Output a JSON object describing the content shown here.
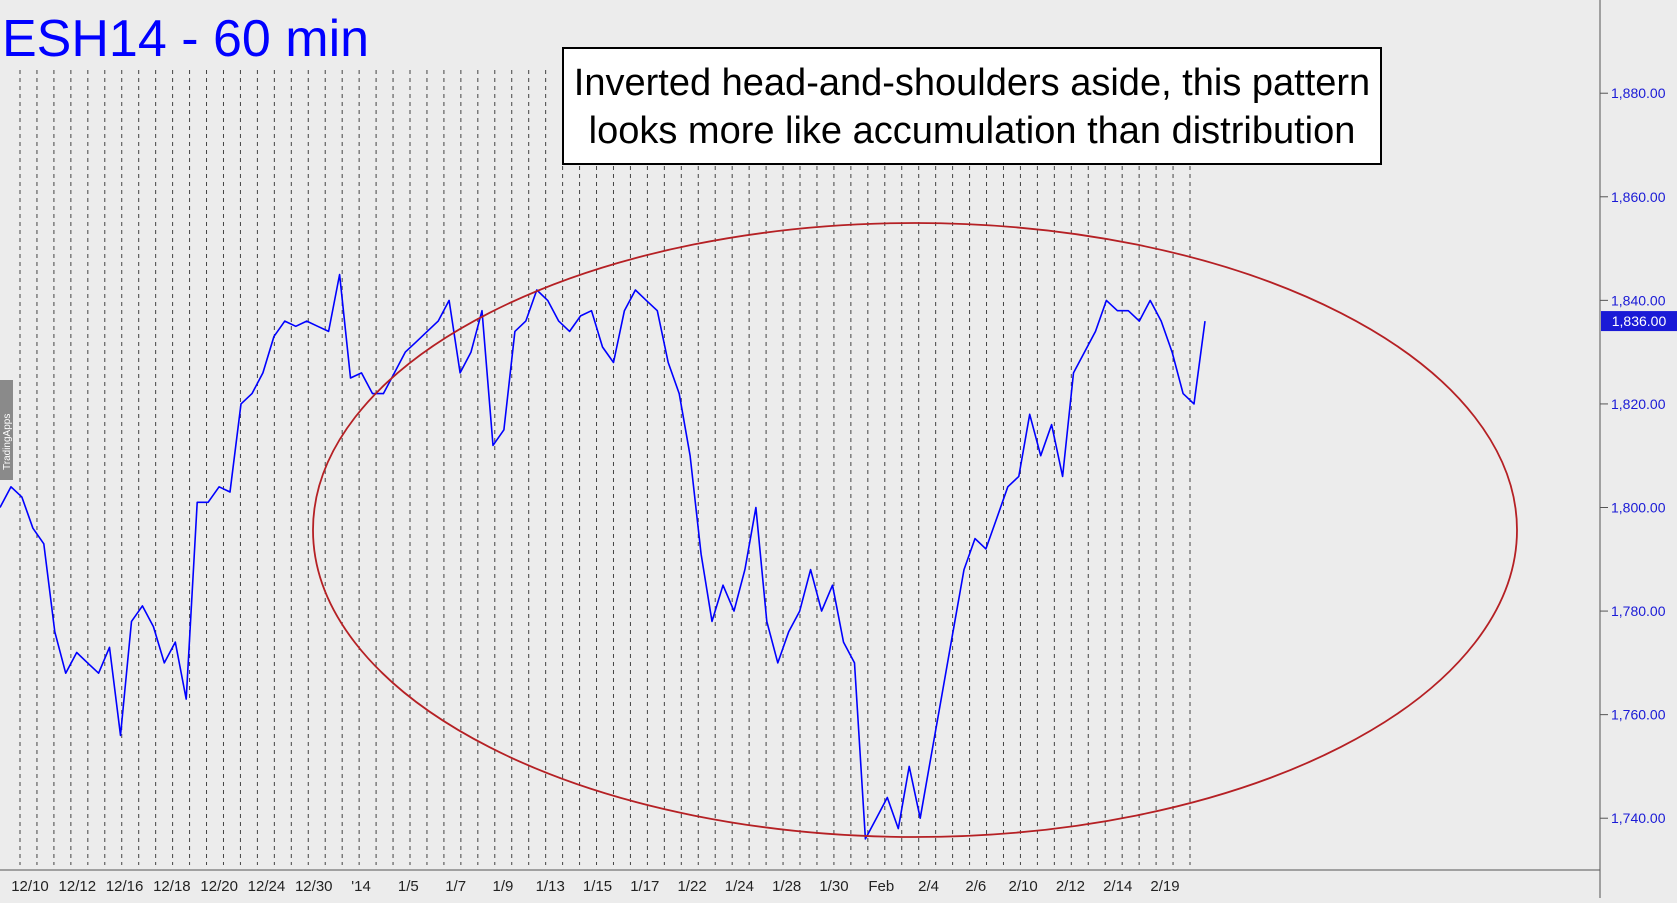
{
  "chart_title": "ESH14 - 60 min",
  "annotation": {
    "line1": "Inverted head-and-shoulders aside, this pattern",
    "line2": "looks more like accumulation than distribution"
  },
  "side_tab_label": "TradingApps",
  "price_tag": "1,836.00",
  "colors": {
    "background": "#ececec",
    "series": "#0000ff",
    "title": "#0000ff",
    "ellipse": "#b52024",
    "axis_text": "#1a1ad6"
  },
  "chart_data": {
    "type": "line",
    "title": "ESH14 - 60 min",
    "ylim": [
      1730,
      1898
    ],
    "yticks": [
      {
        "value": 1740,
        "label": "1,740.00"
      },
      {
        "value": 1760,
        "label": "1,760.00"
      },
      {
        "value": 1780,
        "label": "1,780.00"
      },
      {
        "value": 1800,
        "label": "1,800.00"
      },
      {
        "value": 1820,
        "label": "1,820.00"
      },
      {
        "value": 1840,
        "label": "1,840.00"
      },
      {
        "value": 1860,
        "label": "1,860.00"
      },
      {
        "value": 1880,
        "label": "1,880.00"
      }
    ],
    "xtick_labels": [
      "12/10",
      "12/12",
      "12/16",
      "12/18",
      "12/20",
      "12/24",
      "12/30",
      "'14",
      "1/5",
      "1/7",
      "1/9",
      "1/13",
      "1/15",
      "1/17",
      "1/22",
      "1/24",
      "1/28",
      "1/30",
      "Feb",
      "2/4",
      "2/6",
      "2/10",
      "2/12",
      "2/14",
      "2/19"
    ],
    "last_value": 1836,
    "series": [
      {
        "values": [
          1800,
          1804,
          1802,
          1796,
          1793,
          1776,
          1768,
          1772,
          1770,
          1768,
          1773,
          1756,
          1778,
          1781,
          1777,
          1770,
          1774,
          1763,
          1801,
          1801,
          1804,
          1803,
          1820,
          1822,
          1826,
          1833,
          1836,
          1835,
          1836,
          1835,
          1834,
          1845,
          1825,
          1826,
          1822,
          1822,
          1826,
          1830,
          1832,
          1834,
          1836,
          1840,
          1826,
          1830,
          1838,
          1812,
          1815,
          1834,
          1836,
          1842,
          1840,
          1836,
          1834,
          1837,
          1838,
          1831,
          1828,
          1838,
          1842,
          1840,
          1838,
          1828,
          1822,
          1810,
          1791,
          1778,
          1785,
          1780,
          1788,
          1800,
          1778,
          1770,
          1776,
          1780,
          1788,
          1780,
          1785,
          1774,
          1770,
          1736,
          1740,
          1744,
          1738,
          1750,
          1740,
          1752,
          1764,
          1776,
          1788,
          1794,
          1792,
          1798,
          1804,
          1806,
          1818,
          1810,
          1816,
          1806,
          1826,
          1830,
          1834,
          1840,
          1838,
          1838,
          1836,
          1840,
          1836,
          1830,
          1822,
          1820,
          1836
        ]
      }
    ]
  }
}
